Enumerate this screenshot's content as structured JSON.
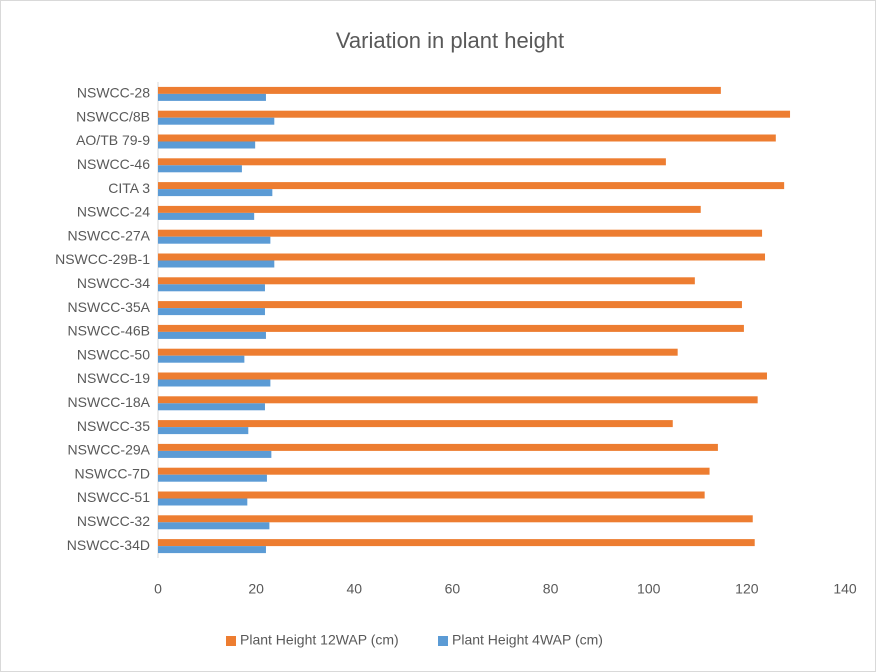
{
  "chart_data": {
    "type": "barh",
    "title": "Variation in plant height",
    "categories": [
      "NSWCC-28",
      "NSWCC/8B",
      "AO/TB 79-9",
      "NSWCC-46",
      "CITA 3",
      "NSWCC-24",
      "NSWCC-27A",
      "NSWCC-29B-1",
      "NSWCC-34",
      "NSWCC-35A",
      "NSWCC-46B",
      "NSWCC-50",
      "NSWCC-19",
      "NSWCC-18A",
      "NSWCC-35",
      "NSWCC-29A",
      "NSWCC-7D",
      "NSWCC-51",
      "NSWCC-32",
      "NSWCC-34D"
    ],
    "series": [
      {
        "name": "Plant Height 12WAP (cm)",
        "color": "#ed7d31",
        "values": [
          114.7,
          128.8,
          125.9,
          103.5,
          127.6,
          110.6,
          123.1,
          123.7,
          109.4,
          119.0,
          119.4,
          105.9,
          124.1,
          122.2,
          104.9,
          114.1,
          112.4,
          111.4,
          121.2,
          121.6
        ]
      },
      {
        "name": "Plant Height 4WAP (cm)",
        "color": "#5b9bd5",
        "values": [
          22.0,
          23.7,
          19.8,
          17.1,
          23.3,
          19.6,
          22.9,
          23.7,
          21.8,
          21.8,
          22.0,
          17.6,
          22.9,
          21.8,
          18.4,
          23.1,
          22.2,
          18.2,
          22.7,
          22.0
        ]
      }
    ],
    "xlim": [
      0,
      140
    ],
    "xticks": [
      0,
      20,
      40,
      60,
      80,
      100,
      120,
      140
    ],
    "grid": false,
    "legend": "bottom"
  }
}
